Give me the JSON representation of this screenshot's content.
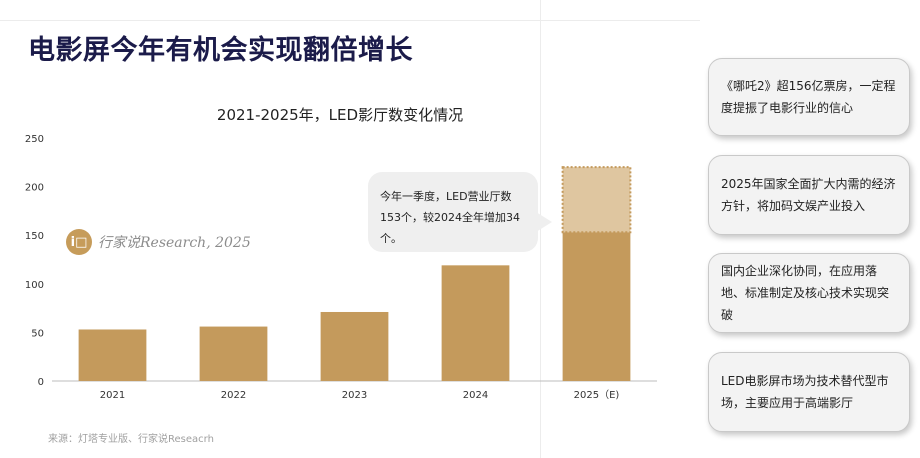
{
  "page_title": "电影屏今年有机会实现翻倍增长",
  "chart_data": {
    "type": "bar",
    "title": "2021-2025年，LED影厅数变化情况",
    "categories": [
      "2021",
      "2022",
      "2023",
      "2024",
      "2025（E)"
    ],
    "values": [
      53,
      56,
      71,
      119,
      220
    ],
    "highlight": {
      "category": "2025（E)",
      "confirmed": 153,
      "projected_total": 220
    },
    "ylim": [
      0,
      250
    ],
    "yticks": [
      0,
      50,
      100,
      150,
      200,
      250
    ],
    "grid": false,
    "colors": {
      "bar": "#c49a5c",
      "projected": "#dfc6a0",
      "projected_border": "#c49a5c"
    }
  },
  "annotation": {
    "line1": "今年一季度，LED营业厅数",
    "line2": "153个，较2024全年增加34个。"
  },
  "watermark": {
    "logo": "i□",
    "text": "行家说Research, 2025"
  },
  "source": "来源：灯塔专业版、行家说Reseacrh",
  "callouts": [
    "《哪吒2》超156亿票房，一定程度提振了电影行业的信心",
    "2025年国家全面扩大内需的经济方针，将加码文娱产业投入",
    "国内企业深化协同，在应用落地、标准制定及核心技术实现突破",
    "LED电影屏市场为技术替代型市场，主要应用于高端影厅"
  ]
}
